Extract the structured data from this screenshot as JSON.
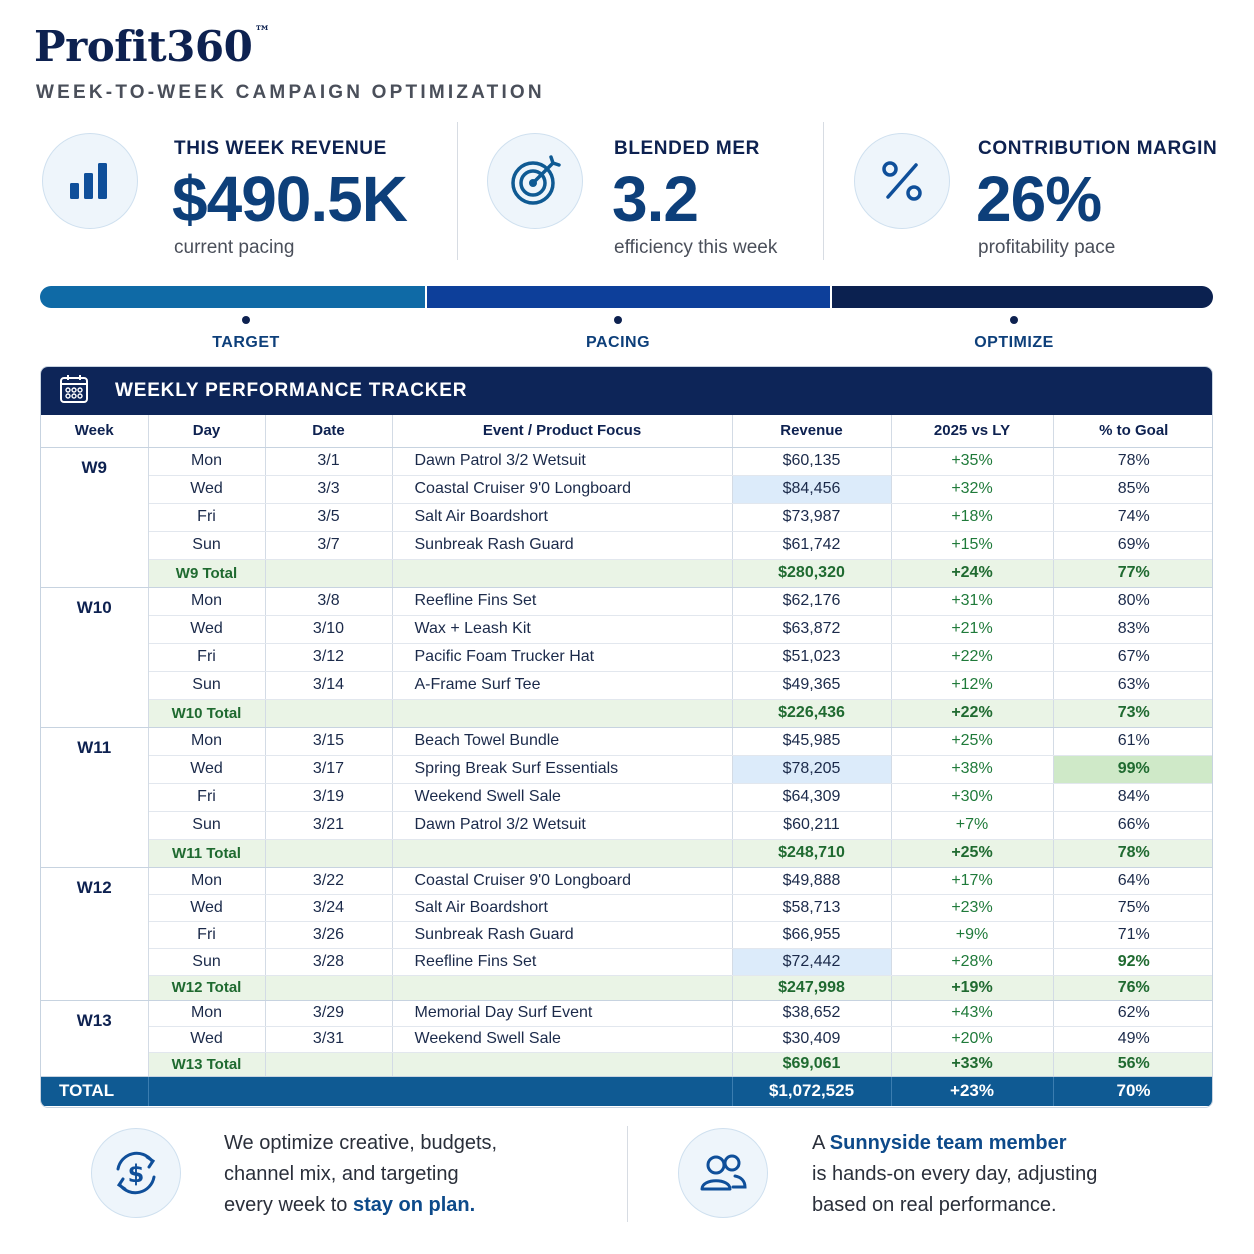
{
  "brand": {
    "name": "Profit360",
    "mark": "™"
  },
  "tagline": "WEEK-TO-WEEK CAMPAIGN OPTIMIZATION",
  "kpis": [
    {
      "icon": "bar-chart-icon",
      "label": "THIS WEEK REVENUE",
      "value": "$490.5K",
      "sub": "current pacing"
    },
    {
      "icon": "target-icon",
      "label": "BLENDED MER",
      "value": "3.2",
      "sub": "efficiency this week"
    },
    {
      "icon": "percent-icon",
      "label": "CONTRIBUTION MARGIN",
      "value": "26%",
      "sub": "profitability pace"
    }
  ],
  "stages": [
    "TARGET",
    "PACING",
    "OPTIMIZE"
  ],
  "colors": {
    "navy": "#0d2558",
    "stage1": "#0f6aa6",
    "stage2": "#0d3f9a",
    "stage3": "#0b2150",
    "positive": "#1f7a3a",
    "total_bar": "#0f5a93"
  },
  "tracker": {
    "title": "WEEKLY PERFORMANCE TRACKER",
    "columns": [
      "Week",
      "Day",
      "Date",
      "Event / Product Focus",
      "Revenue",
      "2025 vs LY",
      "% to Goal"
    ],
    "weeks": [
      {
        "week": "W9",
        "rows": [
          [
            "Mon",
            "3/1",
            "Dawn Patrol 3/2 Wetsuit",
            "$60,135",
            "+35%",
            "78%"
          ],
          [
            "Wed",
            "3/3",
            "Coastal Cruiser 9'0 Longboard",
            "$84,456",
            "+32%",
            "85%"
          ],
          [
            "Fri",
            "3/5",
            "Salt Air Boardshort",
            "$73,987",
            "+18%",
            "74%"
          ],
          [
            "Sun",
            "3/7",
            "Sunbreak Rash Guard",
            "$61,742",
            "+15%",
            "69%"
          ]
        ],
        "total": [
          "W9 Total",
          "$280,320",
          "+24%",
          "77%"
        ]
      },
      {
        "week": "W10",
        "rows": [
          [
            "Mon",
            "3/8",
            "Reefline Fins Set",
            "$62,176",
            "+31%",
            "80%"
          ],
          [
            "Wed",
            "3/10",
            "Wax + Leash Kit",
            "$63,872",
            "+21%",
            "83%"
          ],
          [
            "Fri",
            "3/12",
            "Pacific Foam Trucker Hat",
            "$51,023",
            "+22%",
            "67%"
          ],
          [
            "Sun",
            "3/14",
            "A-Frame Surf Tee",
            "$49,365",
            "+12%",
            "63%"
          ]
        ],
        "total": [
          "W10 Total",
          "$226,436",
          "+22%",
          "73%"
        ]
      },
      {
        "week": "W11",
        "rows": [
          [
            "Mon",
            "3/15",
            "Beach Towel Bundle",
            "$45,985",
            "+25%",
            "61%"
          ],
          [
            "Wed",
            "3/17",
            "Spring Break Surf Essentials",
            "$78,205",
            "+38%",
            "99%"
          ],
          [
            "Fri",
            "3/19",
            "Weekend Swell Sale",
            "$64,309",
            "+30%",
            "84%"
          ],
          [
            "Sun",
            "3/21",
            "Dawn Patrol 3/2 Wetsuit",
            "$60,211",
            "+7%",
            "66%"
          ]
        ],
        "total": [
          "W11 Total",
          "$248,710",
          "+25%",
          "78%"
        ]
      },
      {
        "week": "W12",
        "rows": [
          [
            "Mon",
            "3/22",
            "Coastal Cruiser 9'0 Longboard",
            "$49,888",
            "+17%",
            "64%"
          ],
          [
            "Wed",
            "3/24",
            "Salt Air Boardshort",
            "$58,713",
            "+23%",
            "75%"
          ],
          [
            "Fri",
            "3/26",
            "Sunbreak Rash Guard",
            "$66,955",
            "+9%",
            "71%"
          ],
          [
            "Sun",
            "3/28",
            "Reefline Fins Set",
            "$72,442",
            "+28%",
            "92%"
          ]
        ],
        "total": [
          "W12 Total",
          "$247,998",
          "+19%",
          "76%"
        ]
      },
      {
        "week": "W13",
        "rows": [
          [
            "Mon",
            "3/29",
            "Memorial Day Surf Event",
            "$38,652",
            "+43%",
            "62%"
          ],
          [
            "Wed",
            "3/31",
            "Weekend Swell Sale",
            "$30,409",
            "+20%",
            "49%"
          ]
        ],
        "total": [
          "W13 Total",
          "$69,061",
          "+33%",
          "56%"
        ]
      }
    ],
    "grand_total": [
      "TOTAL",
      "$1,072,525",
      "+23%",
      "70%"
    ]
  },
  "footer": {
    "left": {
      "icon": "dollar-cycle-icon",
      "line1": "We optimize creative, budgets,",
      "line2": "channel mix, and targeting",
      "line3_pre": "every week to ",
      "line3_bold": "stay on plan."
    },
    "right": {
      "icon": "team-icon",
      "line1_pre": "A ",
      "line1_bold": "Sunnyside team member",
      "line2": "is hands-on every day, adjusting",
      "line3": "based on real performance."
    }
  }
}
